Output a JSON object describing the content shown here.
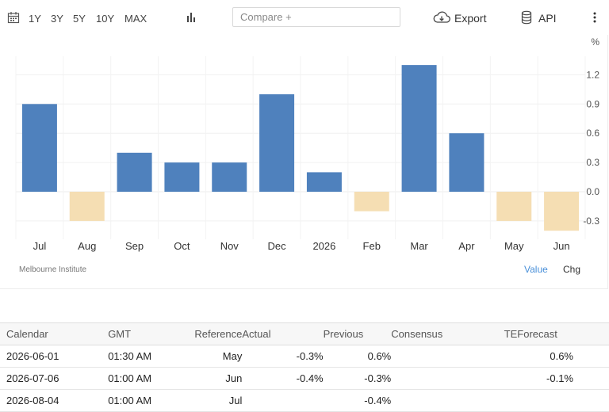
{
  "toolbar": {
    "ranges": [
      "1Y",
      "3Y",
      "5Y",
      "10Y",
      "MAX"
    ],
    "compare_placeholder": "Compare +",
    "export_label": "Export",
    "api_label": "API"
  },
  "chart": {
    "unit": "%",
    "source": "Melbourne Institute",
    "tabs": [
      "Value",
      "Chg"
    ]
  },
  "chart_data": {
    "type": "bar",
    "categories": [
      "Jul",
      "Aug",
      "Sep",
      "Oct",
      "Nov",
      "Dec",
      "2026",
      "Feb",
      "Mar",
      "Apr",
      "May",
      "Jun"
    ],
    "values": [
      0.9,
      -0.3,
      0.4,
      0.3,
      0.3,
      1.0,
      0.2,
      -0.2,
      1.3,
      0.6,
      -0.3,
      -0.4
    ],
    "ylabel": "%",
    "yticks": [
      1.2,
      0.9,
      0.6,
      0.3,
      0.0,
      -0.3
    ],
    "ylim": [
      -0.5,
      1.4
    ],
    "colors": {
      "positive": "#4f81bd",
      "negative": "#f5deb3"
    },
    "grid": true
  },
  "calendar": {
    "headers": [
      "Calendar",
      "GMT",
      "Reference",
      "Actual",
      "Previous",
      "Consensus",
      "TEForecast"
    ],
    "rows": [
      [
        "2026-06-01",
        "01:30 AM",
        "May",
        "-0.3%",
        "0.6%",
        "",
        "0.6%"
      ],
      [
        "2026-07-06",
        "01:00 AM",
        "Jun",
        "-0.4%",
        "-0.3%",
        "",
        "-0.1%"
      ],
      [
        "2026-08-04",
        "01:00 AM",
        "Jul",
        "",
        "-0.4%",
        "",
        ""
      ]
    ]
  }
}
